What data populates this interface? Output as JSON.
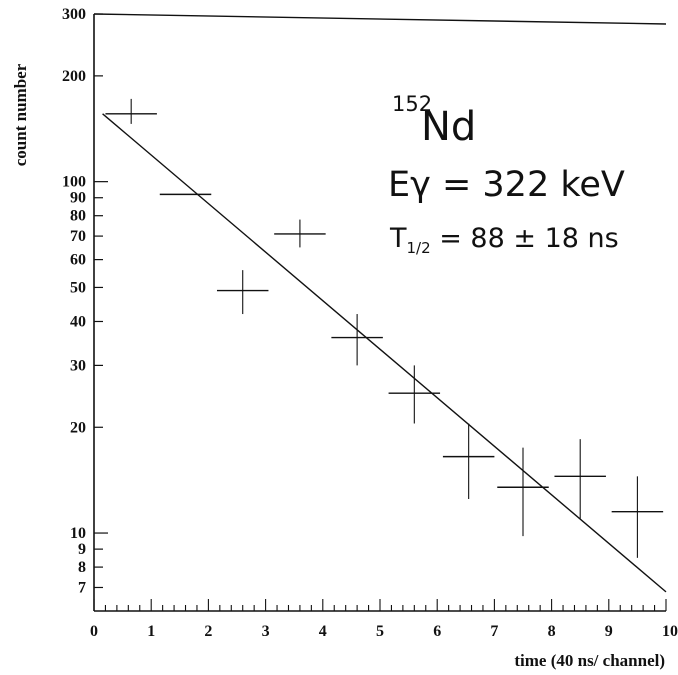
{
  "chart_data": {
    "type": "scatter",
    "title": "",
    "xlabel": "time (40 ns/ channel)",
    "ylabel": "count number",
    "xlim": [
      0,
      10
    ],
    "ylim": [
      6,
      300
    ],
    "yscale": "log",
    "grid": false,
    "x_ticks": [
      {
        "value": 0,
        "label": "0"
      },
      {
        "value": 1,
        "label": "1"
      },
      {
        "value": 2,
        "label": "2"
      },
      {
        "value": 3,
        "label": "3"
      },
      {
        "value": 4,
        "label": "4"
      },
      {
        "value": 5,
        "label": "5"
      },
      {
        "value": 6,
        "label": "6"
      },
      {
        "value": 7,
        "label": "7"
      },
      {
        "value": 8,
        "label": "8"
      },
      {
        "value": 9,
        "label": "9"
      },
      {
        "value": 10,
        "label": "10"
      }
    ],
    "y_ticks": [
      {
        "value": 7,
        "label": "7"
      },
      {
        "value": 8,
        "label": "8"
      },
      {
        "value": 9,
        "label": "9"
      },
      {
        "value": 10,
        "label": "10"
      },
      {
        "value": 20,
        "label": "20"
      },
      {
        "value": 30,
        "label": "30"
      },
      {
        "value": 40,
        "label": "40"
      },
      {
        "value": 50,
        "label": "50"
      },
      {
        "value": 60,
        "label": "60"
      },
      {
        "value": 70,
        "label": "70"
      },
      {
        "value": 80,
        "label": "80"
      },
      {
        "value": 90,
        "label": "90"
      },
      {
        "value": 100,
        "label": "100"
      },
      {
        "value": 200,
        "label": "200"
      },
      {
        "value": 300,
        "label": "300"
      }
    ],
    "points": [
      {
        "x": 0.65,
        "y": 156,
        "xerr": 0.45,
        "ylo": 146,
        "yhi": 172
      },
      {
        "x": 1.6,
        "y": 92,
        "xerr": 0.45,
        "ylo": 92,
        "yhi": 92
      },
      {
        "x": 2.6,
        "y": 49,
        "xerr": 0.45,
        "ylo": 42,
        "yhi": 56
      },
      {
        "x": 3.6,
        "y": 71,
        "xerr": 0.45,
        "ylo": 65,
        "yhi": 78
      },
      {
        "x": 4.6,
        "y": 36,
        "xerr": 0.45,
        "ylo": 30,
        "yhi": 42
      },
      {
        "x": 5.6,
        "y": 25,
        "xerr": 0.45,
        "ylo": 20.5,
        "yhi": 30
      },
      {
        "x": 6.55,
        "y": 16.5,
        "xerr": 0.45,
        "ylo": 12.5,
        "yhi": 20.5
      },
      {
        "x": 7.5,
        "y": 13.5,
        "xerr": 0.45,
        "ylo": 9.8,
        "yhi": 17.5
      },
      {
        "x": 8.5,
        "y": 14.5,
        "xerr": 0.45,
        "ylo": 11,
        "yhi": 18.5
      },
      {
        "x": 9.5,
        "y": 11.5,
        "xerr": 0.45,
        "ylo": 8.5,
        "yhi": 14.5
      }
    ],
    "fit_line": {
      "x": [
        0.15,
        10
      ],
      "y": [
        156,
        6.8
      ]
    },
    "annotations": {
      "isotope_mass": "152",
      "isotope_symbol": "Nd",
      "energy": "Eγ = 322 keV",
      "halflife_prefix": "T",
      "halflife_sub": "1/2",
      "halflife_rest": " = 88 ± 18 ns"
    }
  }
}
